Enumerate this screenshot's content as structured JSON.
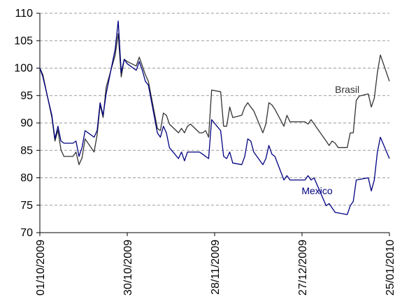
{
  "chart_data": {
    "type": "line",
    "title": "",
    "xlabel": "",
    "ylabel": "",
    "ylim": [
      70,
      110
    ],
    "yticks": [
      70,
      75,
      80,
      85,
      90,
      95,
      100,
      105,
      110
    ],
    "xlim": [
      "2009-10-01",
      "2010-01-25"
    ],
    "xticks": [
      {
        "date": "2009-10-01",
        "label": "01/10/2009"
      },
      {
        "date": "2009-10-30",
        "label": "30/10/2009"
      },
      {
        "date": "2009-11-28",
        "label": "28/11/2009"
      },
      {
        "date": "2009-12-27",
        "label": "27/12/2009"
      },
      {
        "date": "2010-01-25",
        "label": "25/01/2010"
      }
    ],
    "grid": {
      "horizontal": true,
      "style": "dashed"
    },
    "legend": "none (series labelled directly on the plot)",
    "series": [
      {
        "name": "Brasil",
        "color": "#333333",
        "label_position": {
          "date": "2010-01-11",
          "value": 95.5
        },
        "points": [
          [
            "2009-10-01",
            100.0
          ],
          [
            "2009-10-02",
            98.8
          ],
          [
            "2009-10-05",
            91.0
          ],
          [
            "2009-10-06",
            86.7
          ],
          [
            "2009-10-07",
            88.7
          ],
          [
            "2009-10-08",
            85.1
          ],
          [
            "2009-10-09",
            83.9
          ],
          [
            "2009-10-12",
            83.9
          ],
          [
            "2009-10-13",
            84.7
          ],
          [
            "2009-10-14",
            82.4
          ],
          [
            "2009-10-15",
            83.6
          ],
          [
            "2009-10-16",
            87.1
          ],
          [
            "2009-10-19",
            84.7
          ],
          [
            "2009-10-20",
            87.8
          ],
          [
            "2009-10-21",
            93.3
          ],
          [
            "2009-10-22",
            91.0
          ],
          [
            "2009-10-23",
            96.5
          ],
          [
            "2009-10-26",
            102.4
          ],
          [
            "2009-10-27",
            106.3
          ],
          [
            "2009-10-28",
            98.4
          ],
          [
            "2009-10-29",
            101.6
          ],
          [
            "2009-10-30",
            101.2
          ],
          [
            "2009-11-02",
            100.4
          ],
          [
            "2009-11-03",
            102.0
          ],
          [
            "2009-11-04",
            100.4
          ],
          [
            "2009-11-05",
            98.8
          ],
          [
            "2009-11-06",
            97.6
          ],
          [
            "2009-11-09",
            89.0
          ],
          [
            "2009-11-10",
            88.6
          ],
          [
            "2009-11-11",
            91.8
          ],
          [
            "2009-11-12",
            91.4
          ],
          [
            "2009-11-13",
            89.8
          ],
          [
            "2009-11-16",
            88.2
          ],
          [
            "2009-11-17",
            89.0
          ],
          [
            "2009-11-18",
            88.2
          ],
          [
            "2009-11-19",
            89.4
          ],
          [
            "2009-11-20",
            89.8
          ],
          [
            "2009-11-23",
            88.2
          ],
          [
            "2009-11-24",
            88.2
          ],
          [
            "2009-11-25",
            88.6
          ],
          [
            "2009-11-26",
            87.4
          ],
          [
            "2009-11-27",
            96.0
          ],
          [
            "2009-11-30",
            95.7
          ],
          [
            "2009-12-01",
            89.4
          ],
          [
            "2009-12-02",
            89.4
          ],
          [
            "2009-12-03",
            92.9
          ],
          [
            "2009-12-04",
            91.0
          ],
          [
            "2009-12-07",
            91.4
          ],
          [
            "2009-12-08",
            92.9
          ],
          [
            "2009-12-09",
            93.7
          ],
          [
            "2009-12-10",
            92.9
          ],
          [
            "2009-12-11",
            92.2
          ],
          [
            "2009-12-14",
            88.2
          ],
          [
            "2009-12-15",
            89.8
          ],
          [
            "2009-12-16",
            93.7
          ],
          [
            "2009-12-17",
            93.3
          ],
          [
            "2009-12-18",
            92.5
          ],
          [
            "2009-12-21",
            89.4
          ],
          [
            "2009-12-22",
            91.4
          ],
          [
            "2009-12-23",
            90.2
          ],
          [
            "2009-12-28",
            90.2
          ],
          [
            "2009-12-29",
            89.8
          ],
          [
            "2009-12-30",
            90.6
          ],
          [
            "2010-01-04",
            86.7
          ],
          [
            "2010-01-05",
            85.9
          ],
          [
            "2010-01-06",
            86.7
          ],
          [
            "2010-01-07",
            86.3
          ],
          [
            "2010-01-08",
            85.5
          ],
          [
            "2010-01-11",
            85.5
          ],
          [
            "2010-01-12",
            88.2
          ],
          [
            "2010-01-13",
            88.2
          ],
          [
            "2010-01-14",
            94.1
          ],
          [
            "2010-01-15",
            94.9
          ],
          [
            "2010-01-18",
            95.3
          ],
          [
            "2010-01-19",
            92.9
          ],
          [
            "2010-01-20",
            94.5
          ],
          [
            "2010-01-21",
            99.2
          ],
          [
            "2010-01-22",
            102.4
          ],
          [
            "2010-01-25",
            97.6
          ]
        ]
      },
      {
        "name": "Mexico",
        "color": "#000080",
        "label_position": {
          "date": "2010-01-01",
          "value": 77.0
        },
        "points": [
          [
            "2009-10-01",
            100.0
          ],
          [
            "2009-10-02",
            98.4
          ],
          [
            "2009-10-05",
            91.4
          ],
          [
            "2009-10-06",
            87.1
          ],
          [
            "2009-10-07",
            89.4
          ],
          [
            "2009-10-08",
            86.7
          ],
          [
            "2009-10-09",
            86.3
          ],
          [
            "2009-10-12",
            86.3
          ],
          [
            "2009-10-13",
            86.7
          ],
          [
            "2009-10-14",
            83.9
          ],
          [
            "2009-10-15",
            85.5
          ],
          [
            "2009-10-16",
            88.6
          ],
          [
            "2009-10-19",
            87.4
          ],
          [
            "2009-10-20",
            88.6
          ],
          [
            "2009-10-21",
            93.7
          ],
          [
            "2009-10-22",
            91.4
          ],
          [
            "2009-10-23",
            95.3
          ],
          [
            "2009-10-26",
            103.5
          ],
          [
            "2009-10-27",
            108.6
          ],
          [
            "2009-10-28",
            99.2
          ],
          [
            "2009-10-29",
            101.6
          ],
          [
            "2009-10-30",
            100.8
          ],
          [
            "2009-11-02",
            99.6
          ],
          [
            "2009-11-03",
            101.2
          ],
          [
            "2009-11-04",
            99.6
          ],
          [
            "2009-11-05",
            97.6
          ],
          [
            "2009-11-06",
            96.9
          ],
          [
            "2009-11-09",
            88.2
          ],
          [
            "2009-11-10",
            87.4
          ],
          [
            "2009-11-11",
            89.4
          ],
          [
            "2009-11-12",
            88.2
          ],
          [
            "2009-11-13",
            85.5
          ],
          [
            "2009-11-16",
            83.5
          ],
          [
            "2009-11-17",
            84.7
          ],
          [
            "2009-11-18",
            83.1
          ],
          [
            "2009-11-19",
            84.7
          ],
          [
            "2009-11-20",
            84.7
          ],
          [
            "2009-11-23",
            84.7
          ],
          [
            "2009-11-24",
            84.3
          ],
          [
            "2009-11-26",
            83.5
          ],
          [
            "2009-11-27",
            90.6
          ],
          [
            "2009-11-30",
            88.6
          ],
          [
            "2009-12-01",
            83.9
          ],
          [
            "2009-12-02",
            83.5
          ],
          [
            "2009-12-03",
            84.7
          ],
          [
            "2009-12-04",
            82.7
          ],
          [
            "2009-12-07",
            82.4
          ],
          [
            "2009-12-08",
            83.9
          ],
          [
            "2009-12-09",
            87.1
          ],
          [
            "2009-12-10",
            86.7
          ],
          [
            "2009-12-11",
            84.7
          ],
          [
            "2009-12-14",
            82.4
          ],
          [
            "2009-12-15",
            83.5
          ],
          [
            "2009-12-16",
            85.9
          ],
          [
            "2009-12-17",
            84.3
          ],
          [
            "2009-12-18",
            83.9
          ],
          [
            "2009-12-21",
            79.6
          ],
          [
            "2009-12-22",
            80.4
          ],
          [
            "2009-12-23",
            79.6
          ],
          [
            "2009-12-28",
            79.6
          ],
          [
            "2009-12-29",
            80.4
          ],
          [
            "2009-12-30",
            79.6
          ],
          [
            "2009-12-31",
            80.0
          ],
          [
            "2010-01-04",
            74.9
          ],
          [
            "2010-01-05",
            75.3
          ],
          [
            "2010-01-06",
            74.5
          ],
          [
            "2010-01-07",
            73.7
          ],
          [
            "2010-01-11",
            73.3
          ],
          [
            "2010-01-12",
            74.9
          ],
          [
            "2010-01-13",
            75.7
          ],
          [
            "2010-01-14",
            79.6
          ],
          [
            "2010-01-18",
            80.0
          ],
          [
            "2010-01-19",
            77.6
          ],
          [
            "2010-01-20",
            79.6
          ],
          [
            "2010-01-21",
            84.7
          ],
          [
            "2010-01-22",
            87.4
          ],
          [
            "2010-01-25",
            83.5
          ]
        ]
      }
    ]
  }
}
